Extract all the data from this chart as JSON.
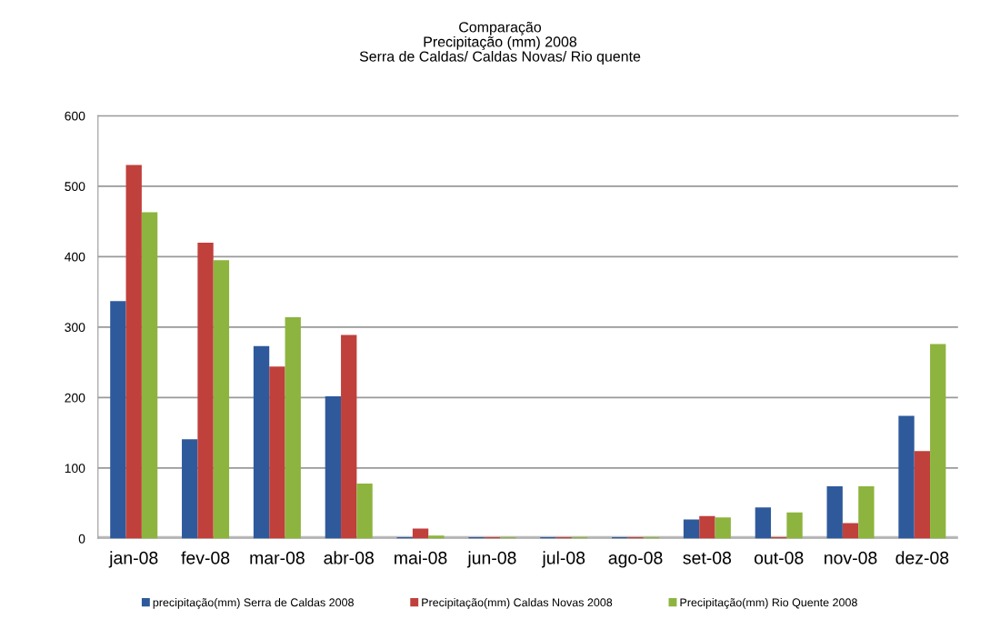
{
  "chart_data": {
    "type": "bar",
    "title": "Comparação\nPrecipitação (mm) 2008\nSerra de Caldas/ Caldas Novas/ Rio quente",
    "categories": [
      "jan-08",
      "fev-08",
      "mar-08",
      "abr-08",
      "mai-08",
      "jun-08",
      "jul-08",
      "ago-08",
      "set-08",
      "out-08",
      "nov-08",
      "dez-08"
    ],
    "series": [
      {
        "name": "precipitação(mm) Serra de Caldas 2008",
        "color": "#2e5a9c",
        "values": [
          337,
          141,
          273,
          202,
          2,
          2,
          2,
          2,
          27,
          44,
          74,
          174
        ]
      },
      {
        "name": "Precipitação(mm) Caldas Novas 2008",
        "color": "#c0403c",
        "values": [
          530,
          420,
          244,
          289,
          14,
          2,
          2,
          2,
          32,
          2,
          22,
          124
        ]
      },
      {
        "name": "Precipitação(mm) Rio Quente 2008",
        "color": "#8db43e",
        "values": [
          463,
          395,
          314,
          78,
          4,
          2,
          2,
          2,
          30,
          37,
          74,
          276
        ]
      }
    ],
    "ylim": [
      0,
      600
    ],
    "yticks": [
      0,
      100,
      200,
      300,
      400,
      500,
      600
    ],
    "grid": "y",
    "legend": "bottom"
  }
}
